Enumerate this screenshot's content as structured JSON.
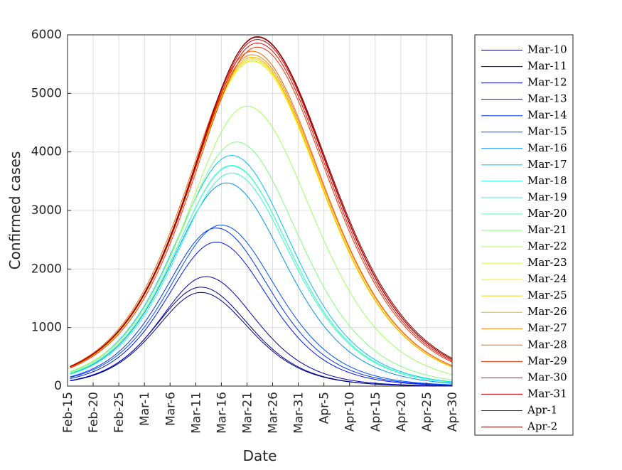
{
  "chart_data": {
    "type": "line",
    "title": "",
    "xlabel": "Date",
    "ylabel": "Confirmed cases",
    "x_tick_labels": [
      "Feb-15",
      "Feb-20",
      "Feb-25",
      "Mar-1",
      "Mar-6",
      "Mar-11",
      "Mar-16",
      "Mar-21",
      "Mar-26",
      "Mar-31",
      "Apr-5",
      "Apr-10",
      "Apr-15",
      "Apr-20",
      "Apr-25",
      "Apr-30"
    ],
    "xlim": [
      "Feb-15",
      "Apr-30"
    ],
    "y_ticks": [
      0,
      1000,
      2000,
      3000,
      4000,
      5000,
      6000
    ],
    "ylim": [
      0,
      6000
    ],
    "grid": true,
    "legend_position": "outside-right",
    "series": [
      {
        "name": "Mar-10",
        "color": "#000080",
        "peak_date": "Mar-12",
        "peak": 1600,
        "rise_width": 6.0,
        "fall_width": 6.5
      },
      {
        "name": "Mar-11",
        "color": "#00008f",
        "peak_date": "Mar-12",
        "peak": 1690,
        "rise_width": 6.0,
        "fall_width": 6.5
      },
      {
        "name": "Mar-12",
        "color": "#0000bb",
        "peak_date": "Mar-13",
        "peak": 1870,
        "rise_width": 6.1,
        "fall_width": 6.6
      },
      {
        "name": "Mar-13",
        "color": "#0010ff",
        "peak_date": "Mar-15",
        "peak": 2460,
        "rise_width": 6.6,
        "fall_width": 7.0
      },
      {
        "name": "Mar-14",
        "color": "#0030ff",
        "peak_date": "Mar-15",
        "peak": 2700,
        "rise_width": 6.8,
        "fall_width": 7.2
      },
      {
        "name": "Mar-15",
        "color": "#0050ff",
        "peak_date": "Mar-16",
        "peak": 2750,
        "rise_width": 6.9,
        "fall_width": 7.3
      },
      {
        "name": "Mar-16",
        "color": "#0090ff",
        "peak_date": "Mar-17",
        "peak": 3470,
        "rise_width": 7.3,
        "fall_width": 7.8
      },
      {
        "name": "Mar-17",
        "color": "#00c0ff",
        "peak_date": "Mar-18",
        "peak": 3940,
        "rise_width": 7.6,
        "fall_width": 8.0
      },
      {
        "name": "Mar-18",
        "color": "#10ffef",
        "peak_date": "Mar-18",
        "peak": 3770,
        "rise_width": 7.5,
        "fall_width": 7.9
      },
      {
        "name": "Mar-19",
        "color": "#30ffcf",
        "peak_date": "Mar-18",
        "peak": 3640,
        "rise_width": 7.4,
        "fall_width": 7.9
      },
      {
        "name": "Mar-20",
        "color": "#50ffaf",
        "peak_date": "Mar-18",
        "peak": 3760,
        "rise_width": 7.5,
        "fall_width": 7.9
      },
      {
        "name": "Mar-21",
        "color": "#80ff80",
        "peak_date": "Mar-19",
        "peak": 4170,
        "rise_width": 7.7,
        "fall_width": 8.3
      },
      {
        "name": "Mar-22",
        "color": "#a0ff60",
        "peak_date": "Mar-21",
        "peak": 4780,
        "rise_width": 8.0,
        "fall_width": 8.8
      },
      {
        "name": "Mar-23",
        "color": "#d0ff30",
        "peak_date": "Mar-22",
        "peak": 5550,
        "rise_width": 8.4,
        "fall_width": 9.3
      },
      {
        "name": "Mar-24",
        "color": "#ffef00",
        "peak_date": "Mar-22",
        "peak": 5560,
        "rise_width": 8.4,
        "fall_width": 9.3
      },
      {
        "name": "Mar-25",
        "color": "#ffcf00",
        "peak_date": "Mar-22",
        "peak": 5590,
        "rise_width": 8.4,
        "fall_width": 9.3
      },
      {
        "name": "Mar-26",
        "color": "#ffaf00",
        "peak_date": "Mar-22",
        "peak": 5620,
        "rise_width": 8.4,
        "fall_width": 9.3
      },
      {
        "name": "Mar-27",
        "color": "#ff8000",
        "peak_date": "Mar-22",
        "peak": 5660,
        "rise_width": 8.4,
        "fall_width": 9.4
      },
      {
        "name": "Mar-28",
        "color": "#ff6000",
        "peak_date": "Mar-22",
        "peak": 5720,
        "rise_width": 8.5,
        "fall_width": 9.4
      },
      {
        "name": "Mar-29",
        "color": "#ff3000",
        "peak_date": "Mar-23",
        "peak": 5790,
        "rise_width": 8.5,
        "fall_width": 9.5
      },
      {
        "name": "Mar-30",
        "color": "#ef0000",
        "peak_date": "Mar-23",
        "peak": 5860,
        "rise_width": 8.6,
        "fall_width": 9.6
      },
      {
        "name": "Mar-31",
        "color": "#cf0000",
        "peak_date": "Mar-23",
        "peak": 5920,
        "rise_width": 8.6,
        "fall_width": 9.7
      },
      {
        "name": "Apr-1",
        "color": "#af0000",
        "peak_date": "Mar-23",
        "peak": 5960,
        "rise_width": 8.6,
        "fall_width": 9.7
      },
      {
        "name": "Apr-2",
        "color": "#800000",
        "peak_date": "Mar-23",
        "peak": 5970,
        "rise_width": 8.6,
        "fall_width": 9.8
      }
    ]
  }
}
